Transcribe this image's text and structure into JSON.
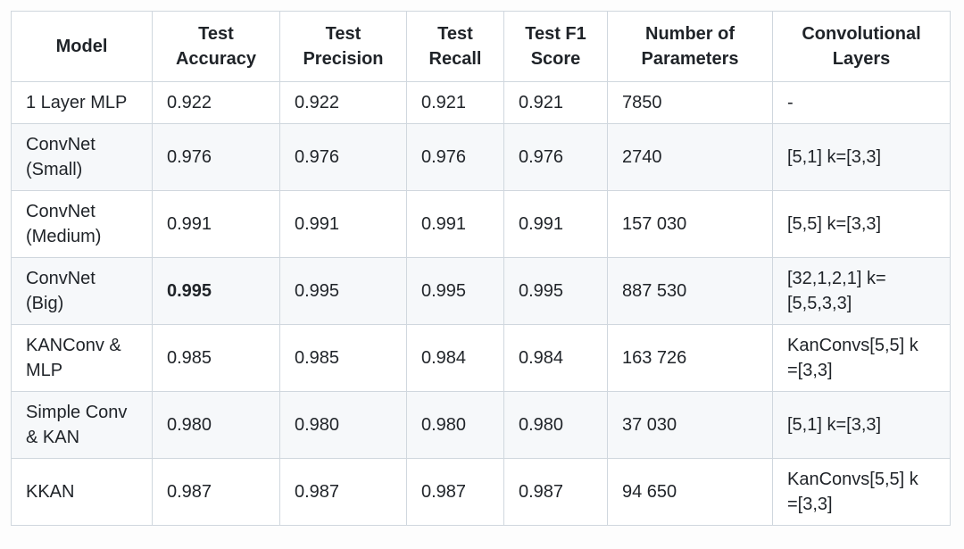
{
  "table": {
    "columns": [
      "Model",
      "Test\nAccuracy",
      "Test\nPrecision",
      "Test\nRecall",
      "Test F1\nScore",
      "Number of\nParameters",
      "Convolutional\nLayers"
    ],
    "column_keys": [
      "model",
      "test-accuracy",
      "test-precision",
      "test-recall",
      "test-f1-score",
      "number-of-parameters",
      "convolutional-layers"
    ],
    "rows": [
      [
        "1 Layer MLP",
        "0.922",
        "0.922",
        "0.921",
        "0.921",
        "7850",
        "-"
      ],
      [
        "ConvNet\n(Small)",
        "0.976",
        "0.976",
        "0.976",
        "0.976",
        "2740",
        "[5,1] k=[3,3]"
      ],
      [
        "ConvNet\n(Medium)",
        "0.991",
        "0.991",
        "0.991",
        "0.991",
        "157 030",
        "[5,5] k=[3,3]"
      ],
      [
        "ConvNet\n(Big)",
        "0.995",
        "0.995",
        "0.995",
        "0.995",
        "887 530",
        "[32,1,2,1] k=\n[5,5,3,3]"
      ],
      [
        "KANConv &\nMLP",
        "0.985",
        "0.985",
        "0.984",
        "0.984",
        "163 726",
        "KanConvs[5,5] k\n=[3,3]"
      ],
      [
        "Simple Conv\n& KAN",
        "0.980",
        "0.980",
        "0.980",
        "0.980",
        "37 030",
        "[5,1] k=[3,3]"
      ],
      [
        "KKAN",
        "0.987",
        "0.987",
        "0.987",
        "0.987",
        "94 650",
        "KanConvs[5,5] k\n=[3,3]"
      ]
    ],
    "bold_cells": [
      [
        3,
        1
      ]
    ],
    "colors": {
      "border": "#d0d7de",
      "stripe_background": "#f6f8fa",
      "text": "#1f2328",
      "table_background": "#ffffff"
    }
  }
}
